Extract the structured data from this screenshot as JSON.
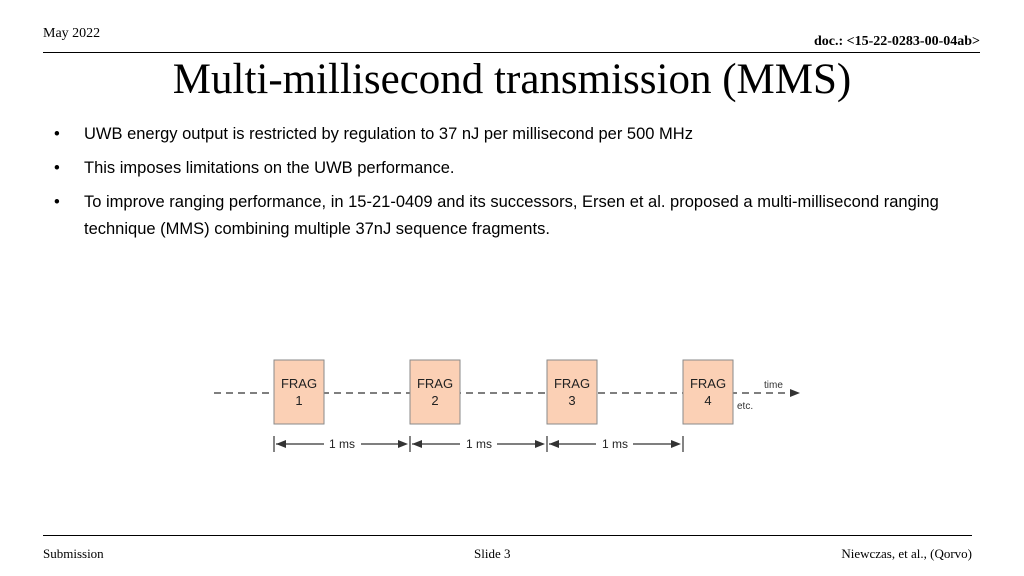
{
  "header": {
    "date": "May 2022",
    "doc": "doc.: <15-22-0283-00-04ab>"
  },
  "title": "Multi-millisecond transmission (MMS)",
  "bullets": [
    "UWB energy output is restricted by regulation to 37 nJ per millisecond per 500 MHz",
    "This imposes limitations on the UWB performance.",
    "To improve ranging performance, in 15-21-0409 and its successors, Ersen et al. proposed a multi-millisecond ranging technique (MMS) combining multiple 37nJ sequence fragments."
  ],
  "bullet_symbol": "•",
  "diagram": {
    "fragments": [
      {
        "line1": "FRAG",
        "line2": "1"
      },
      {
        "line1": "FRAG",
        "line2": "2"
      },
      {
        "line1": "FRAG",
        "line2": "3"
      },
      {
        "line1": "FRAG",
        "line2": "4"
      }
    ],
    "time_label": "time",
    "etc_label": "etc.",
    "interval_label": "1 ms",
    "fragment_fill": "#fbd0b5",
    "fragment_stroke": "#8a8a8a"
  },
  "footer": {
    "left": "Submission",
    "center": "Slide 3",
    "right": "Niewczas, et al., (Qorvo)"
  }
}
